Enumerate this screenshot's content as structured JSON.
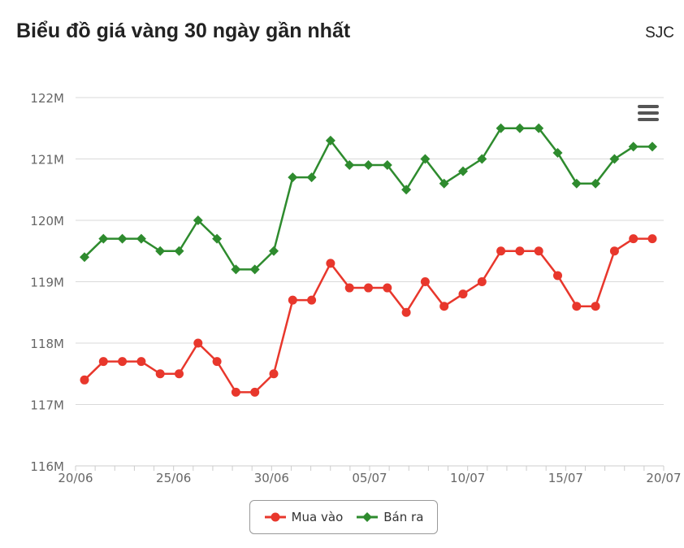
{
  "header": {
    "title": "Biểu đồ giá vàng 30 ngày gần nhất",
    "source": "SJC"
  },
  "menu": {
    "icon": "hamburger-menu-icon"
  },
  "chart_data": {
    "type": "line",
    "title": "Biểu đồ giá vàng 30 ngày gần nhất",
    "xlabel": "",
    "ylabel": "",
    "x": [
      "20/06",
      "21/06",
      "22/06",
      "23/06",
      "24/06",
      "25/06",
      "26/06",
      "27/06",
      "28/06",
      "29/06",
      "30/06",
      "01/07",
      "02/07",
      "03/07",
      "04/07",
      "05/07",
      "06/07",
      "07/07",
      "08/07",
      "09/07",
      "10/07",
      "11/07",
      "12/07",
      "13/07",
      "14/07",
      "15/07",
      "16/07",
      "17/07",
      "18/07",
      "19/07",
      "20/07"
    ],
    "x_tick_labels": [
      "20/06",
      "25/06",
      "30/06",
      "05/07",
      "10/07",
      "15/07",
      "20/07"
    ],
    "y_tick_labels": [
      "116M",
      "117M",
      "118M",
      "119M",
      "120M",
      "121M",
      "122M"
    ],
    "ylim": [
      116,
      122
    ],
    "y_unit": "M",
    "grid": true,
    "legend_position": "bottom-center",
    "series": [
      {
        "name": "Mua vào",
        "color": "#e8372c",
        "marker": "circle",
        "points": [
          [
            "21/06",
            117.4
          ],
          [
            "22/06",
            117.7
          ],
          [
            "23/06",
            117.7
          ],
          [
            "24/06",
            117.7
          ],
          [
            "25/06",
            117.5
          ],
          [
            "26/06",
            117.5
          ],
          [
            "27/06",
            118.0
          ],
          [
            "28/06",
            117.7
          ],
          [
            "29/06",
            117.2
          ],
          [
            "30/06",
            117.2
          ],
          [
            "01/07",
            117.5
          ],
          [
            "02/07",
            118.7
          ],
          [
            "03/07",
            118.7
          ],
          [
            "04/07",
            119.3
          ],
          [
            "05/07",
            118.9
          ],
          [
            "06/07",
            118.9
          ],
          [
            "07/07",
            118.9
          ],
          [
            "08/07",
            118.5
          ],
          [
            "09/07",
            119.0
          ],
          [
            "10/07",
            118.6
          ],
          [
            "11/07",
            118.8
          ],
          [
            "12/07",
            119.0
          ],
          [
            "13/07",
            119.5
          ],
          [
            "14/07",
            119.5
          ],
          [
            "15/07",
            119.5
          ],
          [
            "16/07",
            119.1
          ],
          [
            "17/07",
            118.6
          ],
          [
            "18/07",
            118.6
          ],
          [
            "19/07",
            119.5
          ],
          [
            "20/07",
            119.7
          ],
          [
            "21/07",
            119.7
          ]
        ]
      },
      {
        "name": "Bán ra",
        "color": "#2e8b2e",
        "marker": "diamond",
        "points": [
          [
            "21/06",
            119.4
          ],
          [
            "22/06",
            119.7
          ],
          [
            "23/06",
            119.7
          ],
          [
            "24/06",
            119.7
          ],
          [
            "25/06",
            119.5
          ],
          [
            "26/06",
            119.5
          ],
          [
            "27/06",
            120.0
          ],
          [
            "28/06",
            119.7
          ],
          [
            "29/06",
            119.2
          ],
          [
            "30/06",
            119.2
          ],
          [
            "01/07",
            119.5
          ],
          [
            "02/07",
            120.7
          ],
          [
            "03/07",
            120.7
          ],
          [
            "04/07",
            121.3
          ],
          [
            "05/07",
            120.9
          ],
          [
            "06/07",
            120.9
          ],
          [
            "07/07",
            120.9
          ],
          [
            "08/07",
            120.5
          ],
          [
            "09/07",
            121.0
          ],
          [
            "10/07",
            120.6
          ],
          [
            "11/07",
            120.8
          ],
          [
            "12/07",
            121.0
          ],
          [
            "13/07",
            121.5
          ],
          [
            "14/07",
            121.5
          ],
          [
            "15/07",
            121.5
          ],
          [
            "16/07",
            121.1
          ],
          [
            "17/07",
            120.6
          ],
          [
            "18/07",
            120.6
          ],
          [
            "19/07",
            121.0
          ],
          [
            "20/07",
            121.2
          ],
          [
            "21/07",
            121.2
          ]
        ]
      }
    ]
  }
}
